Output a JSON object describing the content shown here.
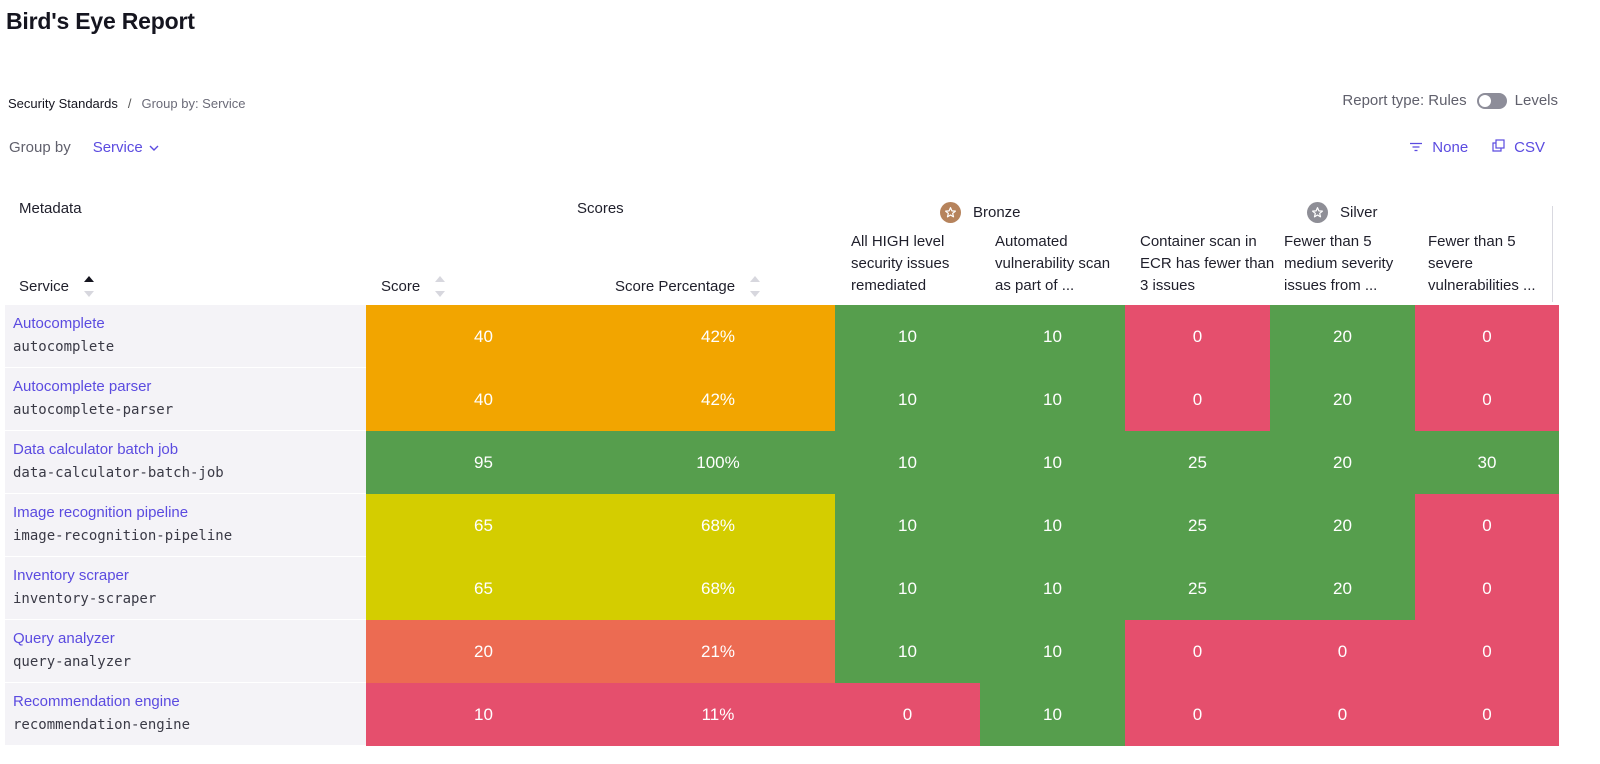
{
  "page": {
    "title": "Bird's Eye Report"
  },
  "breadcrumb": {
    "root": "Security Standards",
    "separator": "/",
    "current": "Group by: Service"
  },
  "report_type": {
    "label": "Report type: Rules",
    "alt_label": "Levels",
    "toggle_on": false
  },
  "group_by": {
    "label": "Group by",
    "value": "Service"
  },
  "toolbar": {
    "filter_label": "None",
    "csv_label": "CSV"
  },
  "colors": {
    "accent": "#5b4be0",
    "orange": "#f2a500",
    "green": "#569e4d",
    "red": "#e54f6d",
    "yellow": "#d4cd00",
    "coral": "#ec6b52",
    "bronze": "#b6835c",
    "silver": "#8e8e96"
  },
  "table": {
    "group_metadata": "Metadata",
    "group_scores": "Scores",
    "levels": [
      {
        "name": "Bronze",
        "icon": "bronze-star-icon"
      },
      {
        "name": "Silver",
        "icon": "silver-star-icon"
      }
    ],
    "columns": {
      "service": "Service",
      "score": "Score",
      "score_percentage": "Score Percentage",
      "rules": [
        "All HIGH level security issues remediated",
        "Automated vulnerability scan as part of ...",
        "Container scan in ECR has fewer than 3 issues",
        "Fewer than 5 medium severity issues from ...",
        "Fewer than 5 severe vulnerabilities ..."
      ]
    },
    "rows": [
      {
        "name": "Autocomplete",
        "slug": "autocomplete",
        "score": "40",
        "pct": "42%",
        "score_color": "orange",
        "rules": [
          [
            "10",
            "green"
          ],
          [
            "10",
            "green"
          ],
          [
            "0",
            "red"
          ],
          [
            "20",
            "green"
          ],
          [
            "0",
            "red"
          ]
        ]
      },
      {
        "name": "Autocomplete parser",
        "slug": "autocomplete-parser",
        "score": "40",
        "pct": "42%",
        "score_color": "orange",
        "rules": [
          [
            "10",
            "green"
          ],
          [
            "10",
            "green"
          ],
          [
            "0",
            "red"
          ],
          [
            "20",
            "green"
          ],
          [
            "0",
            "red"
          ]
        ]
      },
      {
        "name": "Data calculator batch job",
        "slug": "data-calculator-batch-job",
        "score": "95",
        "pct": "100%",
        "score_color": "green",
        "rules": [
          [
            "10",
            "green"
          ],
          [
            "10",
            "green"
          ],
          [
            "25",
            "green"
          ],
          [
            "20",
            "green"
          ],
          [
            "30",
            "green"
          ]
        ]
      },
      {
        "name": "Image recognition pipeline",
        "slug": "image-recognition-pipeline",
        "score": "65",
        "pct": "68%",
        "score_color": "yellow",
        "rules": [
          [
            "10",
            "green"
          ],
          [
            "10",
            "green"
          ],
          [
            "25",
            "green"
          ],
          [
            "20",
            "green"
          ],
          [
            "0",
            "red"
          ]
        ]
      },
      {
        "name": "Inventory scraper",
        "slug": "inventory-scraper",
        "score": "65",
        "pct": "68%",
        "score_color": "yellow",
        "rules": [
          [
            "10",
            "green"
          ],
          [
            "10",
            "green"
          ],
          [
            "25",
            "green"
          ],
          [
            "20",
            "green"
          ],
          [
            "0",
            "red"
          ]
        ]
      },
      {
        "name": "Query analyzer",
        "slug": "query-analyzer",
        "score": "20",
        "pct": "21%",
        "score_color": "coral",
        "rules": [
          [
            "10",
            "green"
          ],
          [
            "10",
            "green"
          ],
          [
            "0",
            "red"
          ],
          [
            "0",
            "red"
          ],
          [
            "0",
            "red"
          ]
        ]
      },
      {
        "name": "Recommendation engine",
        "slug": "recommendation-engine",
        "score": "10",
        "pct": "11%",
        "score_color": "red",
        "rules": [
          [
            "0",
            "red"
          ],
          [
            "10",
            "green"
          ],
          [
            "0",
            "red"
          ],
          [
            "0",
            "red"
          ],
          [
            "0",
            "red"
          ]
        ]
      }
    ]
  }
}
